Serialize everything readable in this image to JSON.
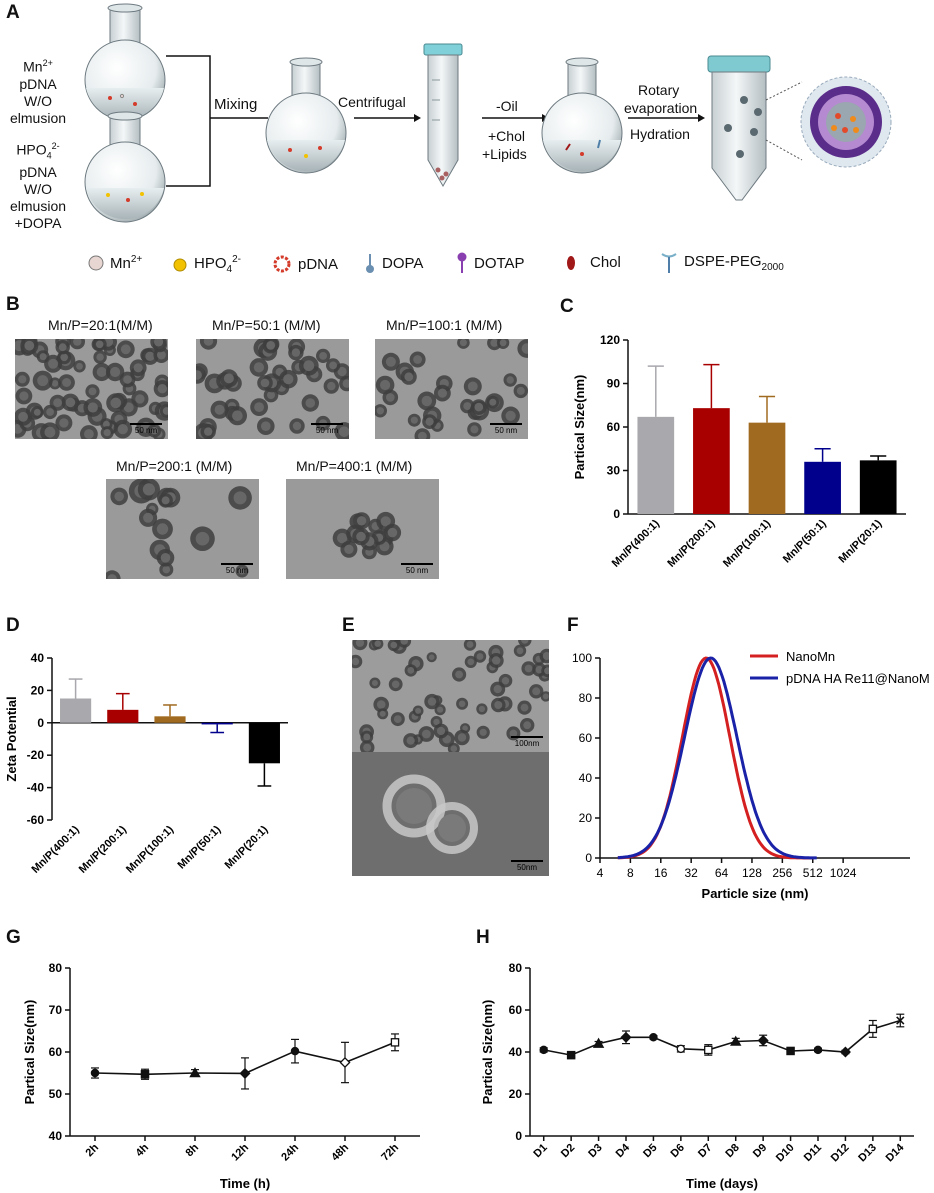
{
  "panels": {
    "A": "A",
    "B": "B",
    "C": "C",
    "D": "D",
    "E": "E",
    "F": "F",
    "G": "G",
    "H": "H"
  },
  "schematic": {
    "flask1_lines": [
      "Mn",
      "pDNA",
      "W/O",
      "elmusion"
    ],
    "flask1_sup": "2+",
    "flask2_lines": [
      "HPO",
      "pDNA",
      "W/O",
      "elmusion",
      "+DOPA"
    ],
    "flask2_sub": "4",
    "flask2_sup": "2-",
    "step_mixing": "Mixing",
    "step_centrifugal": "Centrifugal",
    "step_oil": "-Oil",
    "step_chol": "+Chol",
    "step_lipids": "+Lipids",
    "step_rotary": "Rotary",
    "step_evaporation": "evaporation",
    "step_hydration": "Hydration"
  },
  "legend": [
    {
      "icon": "mn-ion-icon",
      "text": "Mn",
      "sup": "2+",
      "color": "#e8d6d2"
    },
    {
      "icon": "hpo4-ion-icon",
      "text": "HPO",
      "sub": "4",
      "sup": "2-",
      "color": "#f2c200"
    },
    {
      "icon": "pdna-icon",
      "text": "pDNA",
      "color": "#d43b2a"
    },
    {
      "icon": "dopa-icon",
      "text": "DOPA",
      "color": "#6a8fb0"
    },
    {
      "icon": "dotap-icon",
      "text": "DOTAP",
      "color": "#8a3fb0"
    },
    {
      "icon": "chol-icon",
      "text": "Chol",
      "color": "#a01818"
    },
    {
      "icon": "dspe-peg-icon",
      "text": "DSPE-PEG",
      "sub": "2000",
      "color": "#4f7fa8"
    }
  ],
  "tem_b": [
    {
      "label": "Mn/P=20:1(M/M)",
      "scale": "50 nm"
    },
    {
      "label": "Mn/P=50:1 (M/M)",
      "scale": "50 nm"
    },
    {
      "label": "Mn/P=100:1 (M/M)",
      "scale": "50 nm"
    },
    {
      "label": "Mn/P=200:1 (M/M)",
      "scale": "50 nm"
    },
    {
      "label": "Mn/P=400:1 (M/M)",
      "scale": "50 nm"
    }
  ],
  "tem_e": [
    {
      "scale": "100nm"
    },
    {
      "scale": "50nm"
    }
  ],
  "chart_data": [
    {
      "panel": "C",
      "type": "bar",
      "categories": [
        "Mn/P(400:1)",
        "Mn/P(200:1)",
        "Mn/P(100:1)",
        "Mn/P(50:1)",
        "Mn/P(20:1)"
      ],
      "values": [
        67,
        73,
        63,
        36,
        37
      ],
      "errors": [
        35,
        30,
        18,
        9,
        3
      ],
      "colors": [
        "#a8a8ad",
        "#a80000",
        "#a06a20",
        "#00008c",
        "#000000"
      ],
      "ylabel": "Partical Size(nm)",
      "ylim": [
        0,
        120
      ],
      "yticks": [
        0,
        30,
        60,
        90,
        120
      ]
    },
    {
      "panel": "D",
      "type": "bar",
      "categories": [
        "Mn/P(400:1)",
        "Mn/P(200:1)",
        "Mn/P(100:1)",
        "Mn/P(50:1)",
        "Mn/P(20:1)"
      ],
      "values": [
        15,
        8,
        4,
        -1,
        -25
      ],
      "errors": [
        12,
        10,
        7,
        5,
        14
      ],
      "colors": [
        "#a8a8ad",
        "#a80000",
        "#a06a20",
        "#00008c",
        "#000000"
      ],
      "ylabel": "Zeta Potential",
      "ylim": [
        -60,
        40
      ],
      "yticks": [
        -60,
        -40,
        -20,
        0,
        20,
        40
      ]
    },
    {
      "panel": "F",
      "type": "line",
      "xlabel": "Particle size (nm)",
      "xscale": "log2",
      "xticks": [
        4,
        8,
        16,
        32,
        64,
        128,
        256,
        512,
        1024
      ],
      "ylim": [
        0,
        100
      ],
      "yticks": [
        0,
        20,
        40,
        60,
        80,
        100
      ],
      "series": [
        {
          "name": "NanoMn",
          "color": "#d42020",
          "peak": 45,
          "x_from": 6,
          "x_to": 520
        },
        {
          "name": "pDNA HA Re11@NanoMn",
          "color": "#1a22a8",
          "peak": 50,
          "x_from": 6,
          "x_to": 560
        }
      ]
    },
    {
      "panel": "G",
      "type": "line",
      "categories": [
        "2h",
        "4h",
        "8h",
        "12h",
        "24h",
        "48h",
        "72h"
      ],
      "values": [
        55,
        54.7,
        55,
        54.9,
        60.2,
        57.5,
        62.3
      ],
      "errors": [
        1.2,
        1.2,
        0.8,
        3.7,
        2.8,
        4.8,
        2.0
      ],
      "markers": [
        "circle",
        "square",
        "triangle",
        "diamond",
        "circle",
        "open-diamond",
        "open-square"
      ],
      "xlabel": "Time (h)",
      "ylabel": "Partical Size(nm)",
      "ylim": [
        40,
        80
      ],
      "yticks": [
        40,
        50,
        60,
        70,
        80
      ]
    },
    {
      "panel": "H",
      "type": "line",
      "categories": [
        "D1",
        "D2",
        "D3",
        "D4",
        "D5",
        "D6",
        "D7",
        "D8",
        "D9",
        "D10",
        "D11",
        "D12",
        "D13",
        "D14"
      ],
      "values": [
        41,
        38.5,
        44,
        47,
        47,
        41.5,
        41,
        45,
        45.5,
        40.5,
        41,
        40,
        51,
        55
      ],
      "errors": [
        1.0,
        1.2,
        1.0,
        3.0,
        0.8,
        1.5,
        2.5,
        1.5,
        2.5,
        1.2,
        0.8,
        0.8,
        4.0,
        3.0
      ],
      "markers": [
        "circle",
        "square",
        "triangle",
        "diamond",
        "circle",
        "open-circle",
        "open-square",
        "triangle",
        "diamond",
        "square",
        "circle",
        "diamond",
        "open-square",
        "x"
      ],
      "xlabel": "Time (days)",
      "ylabel": "Partical Size(nm)",
      "ylim": [
        0,
        80
      ],
      "yticks": [
        0,
        20,
        40,
        60,
        80
      ]
    }
  ]
}
